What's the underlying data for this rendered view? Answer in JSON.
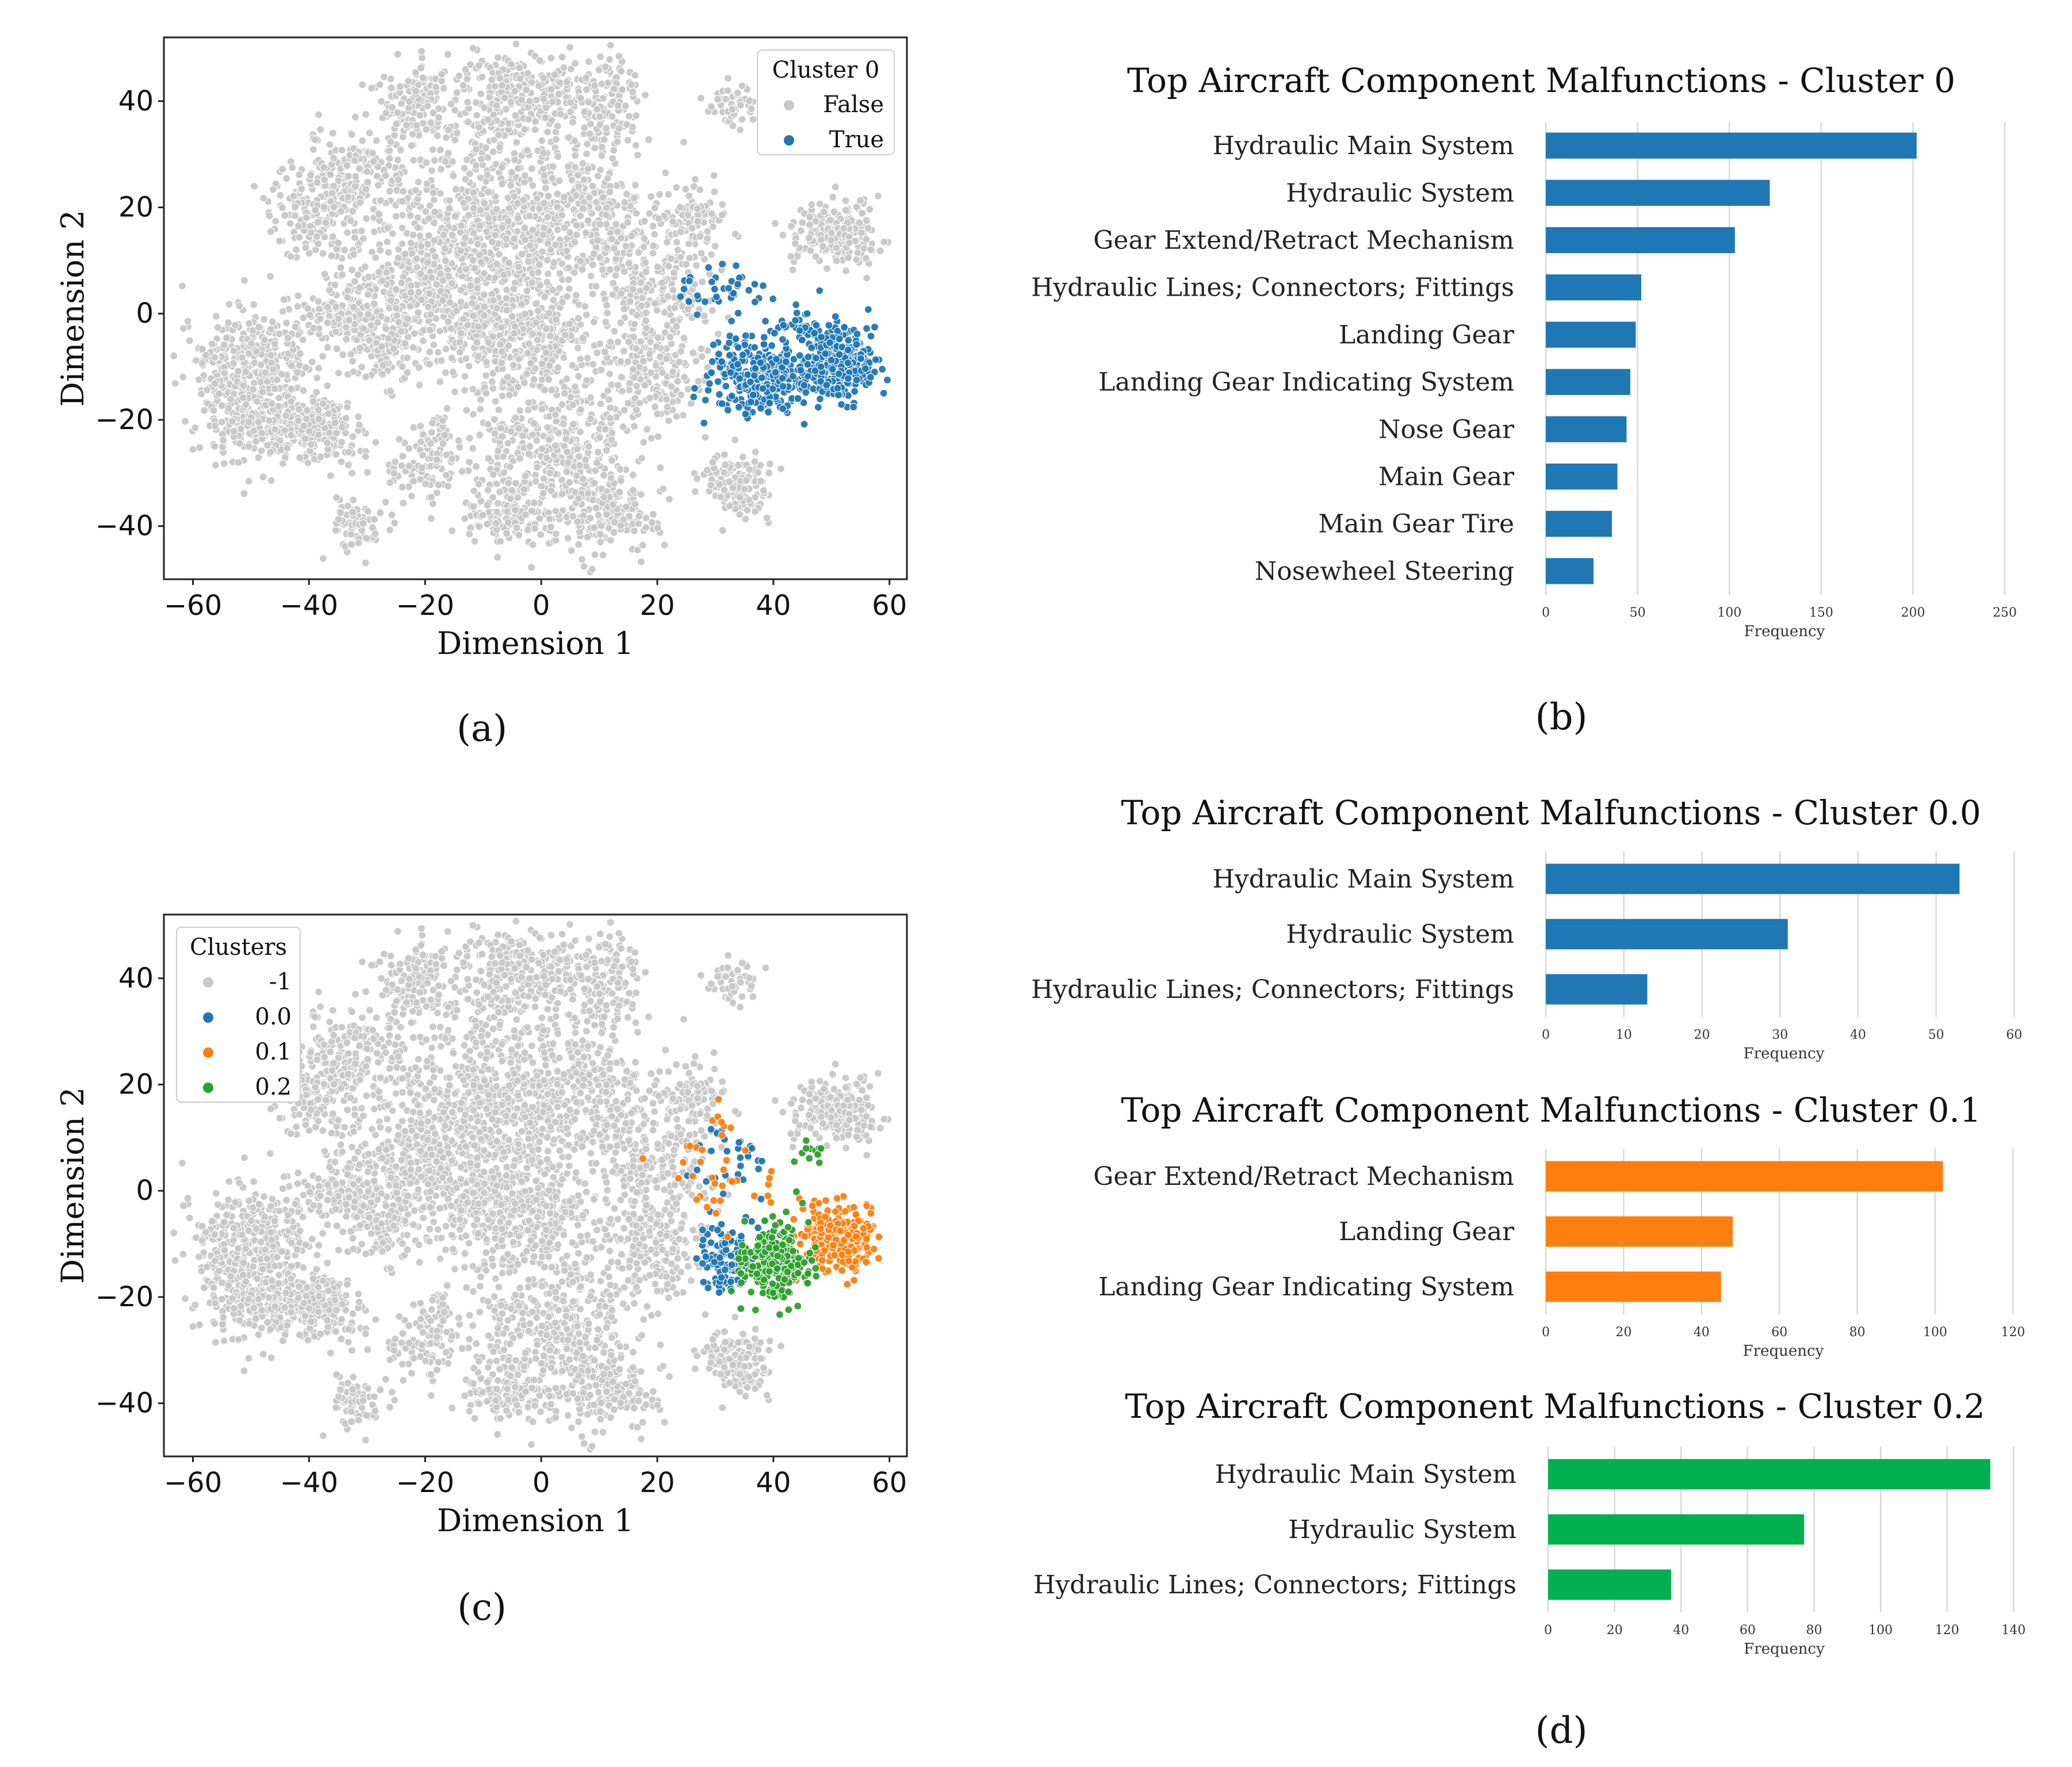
{
  "panel_labels": [
    "(a)",
    "(b)",
    "(c)",
    "(d)"
  ],
  "chart_data": [
    {
      "id": "a",
      "type": "scatter",
      "xlabel": "Dimension 1",
      "ylabel": "Dimension 2",
      "xlim": [
        -65,
        63
      ],
      "ylim": [
        -50,
        52
      ],
      "xticks": [
        -60,
        -40,
        -20,
        0,
        20,
        40,
        60
      ],
      "yticks": [
        -40,
        -20,
        0,
        20,
        40
      ],
      "legend": {
        "title": "Cluster 0",
        "placement": "top-right",
        "entries": [
          {
            "label": "False",
            "color": "#c8c8c8"
          },
          {
            "label": "True",
            "color": "#1f77b4"
          }
        ]
      },
      "series": [
        {
          "name": "False",
          "color": "#c8c8c8",
          "clusters": "background"
        },
        {
          "name": "True",
          "color": "#1f77b4",
          "clusters": [
            {
              "cx": 38,
              "cy": -12,
              "sx": 4.5,
              "sy": 3.5,
              "n": 320
            },
            {
              "cx": 51,
              "cy": -9,
              "sx": 3.2,
              "sy": 3.2,
              "n": 280
            },
            {
              "cx": 32,
              "cy": 5,
              "sx": 4,
              "sy": 3,
              "n": 40
            },
            {
              "cx": 44,
              "cy": -3,
              "sx": 3,
              "sy": 2,
              "n": 40
            }
          ]
        }
      ]
    },
    {
      "id": "b",
      "type": "bar",
      "orientation": "horizontal",
      "title": "Top Aircraft Component Malfunctions - Cluster 0",
      "xlabel": "Frequency",
      "xlim": [
        0,
        260
      ],
      "xticks": [
        0,
        50,
        100,
        150,
        200,
        250
      ],
      "color": "#1f77b4",
      "categories": [
        "Hydraulic Main System",
        "Hydraulic System",
        "Gear Extend/Retract Mechanism",
        "Hydraulic Lines; Connectors; Fittings",
        "Landing Gear",
        "Landing Gear Indicating System",
        "Nose Gear",
        "Main Gear",
        "Main Gear Tire",
        "Nosewheel Steering"
      ],
      "values": [
        202,
        122,
        103,
        52,
        49,
        46,
        44,
        39,
        36,
        26
      ]
    },
    {
      "id": "c",
      "type": "scatter",
      "xlabel": "Dimension 1",
      "ylabel": "Dimension 2",
      "xlim": [
        -65,
        63
      ],
      "ylim": [
        -50,
        52
      ],
      "xticks": [
        -60,
        -40,
        -20,
        0,
        20,
        40,
        60
      ],
      "yticks": [
        -40,
        -20,
        0,
        20,
        40
      ],
      "legend": {
        "title": "Clusters",
        "placement": "top-left",
        "entries": [
          {
            "label": "-1",
            "color": "#c8c8c8"
          },
          {
            "label": "0.0",
            "color": "#1f77b4"
          },
          {
            "label": "0.1",
            "color": "#ff7f0e"
          },
          {
            "label": "0.2",
            "color": "#2ca02c"
          }
        ]
      },
      "series": [
        {
          "name": "-1",
          "color": "#c8c8c8",
          "clusters": "background"
        },
        {
          "name": "0.0",
          "color": "#1f77b4",
          "clusters": [
            {
              "cx": 32,
              "cy": -13,
              "sx": 2.5,
              "sy": 3,
              "n": 110
            },
            {
              "cx": 33,
              "cy": 6,
              "sx": 3,
              "sy": 3,
              "n": 30
            }
          ]
        },
        {
          "name": "0.1",
          "color": "#ff7f0e",
          "clusters": [
            {
              "cx": 51,
              "cy": -9,
              "sx": 3.2,
              "sy": 3.2,
              "n": 300
            },
            {
              "cx": 31,
              "cy": 4,
              "sx": 5,
              "sy": 5,
              "n": 40
            }
          ]
        },
        {
          "name": "0.2",
          "color": "#2ca02c",
          "clusters": [
            {
              "cx": 40,
              "cy": -13,
              "sx": 3,
              "sy": 3.5,
              "n": 260
            },
            {
              "cx": 47,
              "cy": 7,
              "sx": 1.5,
              "sy": 1.5,
              "n": 14
            }
          ]
        }
      ]
    },
    {
      "id": "d0",
      "type": "bar",
      "orientation": "horizontal",
      "title": "Top Aircraft Component Malfunctions - Cluster 0.0",
      "xlabel": "Frequency",
      "xlim": [
        0,
        61
      ],
      "xticks": [
        0,
        10,
        20,
        30,
        40,
        50,
        60
      ],
      "color": "#1f77b4",
      "categories": [
        "Hydraulic Main System",
        "Hydraulic System",
        "Hydraulic Lines; Connectors; Fittings"
      ],
      "values": [
        53,
        31,
        13
      ]
    },
    {
      "id": "d1",
      "type": "bar",
      "orientation": "horizontal",
      "title": "Top Aircraft Component Malfunctions - Cluster 0.1",
      "xlabel": "Frequency",
      "xlim": [
        0,
        122
      ],
      "xticks": [
        0,
        20,
        40,
        60,
        80,
        100,
        120
      ],
      "color": "#ff7f0e",
      "categories": [
        "Gear Extend/Retract Mechanism",
        "Landing Gear",
        "Landing Gear Indicating System"
      ],
      "values": [
        102,
        48,
        45
      ]
    },
    {
      "id": "d2",
      "type": "bar",
      "orientation": "horizontal",
      "title": "Top Aircraft Component Malfunctions - Cluster 0.2",
      "xlabel": "Frequency",
      "xlim": [
        0,
        142
      ],
      "xticks": [
        0,
        20,
        40,
        60,
        80,
        100,
        120,
        140
      ],
      "color": "#00b050",
      "categories": [
        "Hydraulic Main System",
        "Hydraulic System",
        "Hydraulic Lines; Connectors; Fittings"
      ],
      "values": [
        133,
        77,
        37
      ]
    }
  ]
}
